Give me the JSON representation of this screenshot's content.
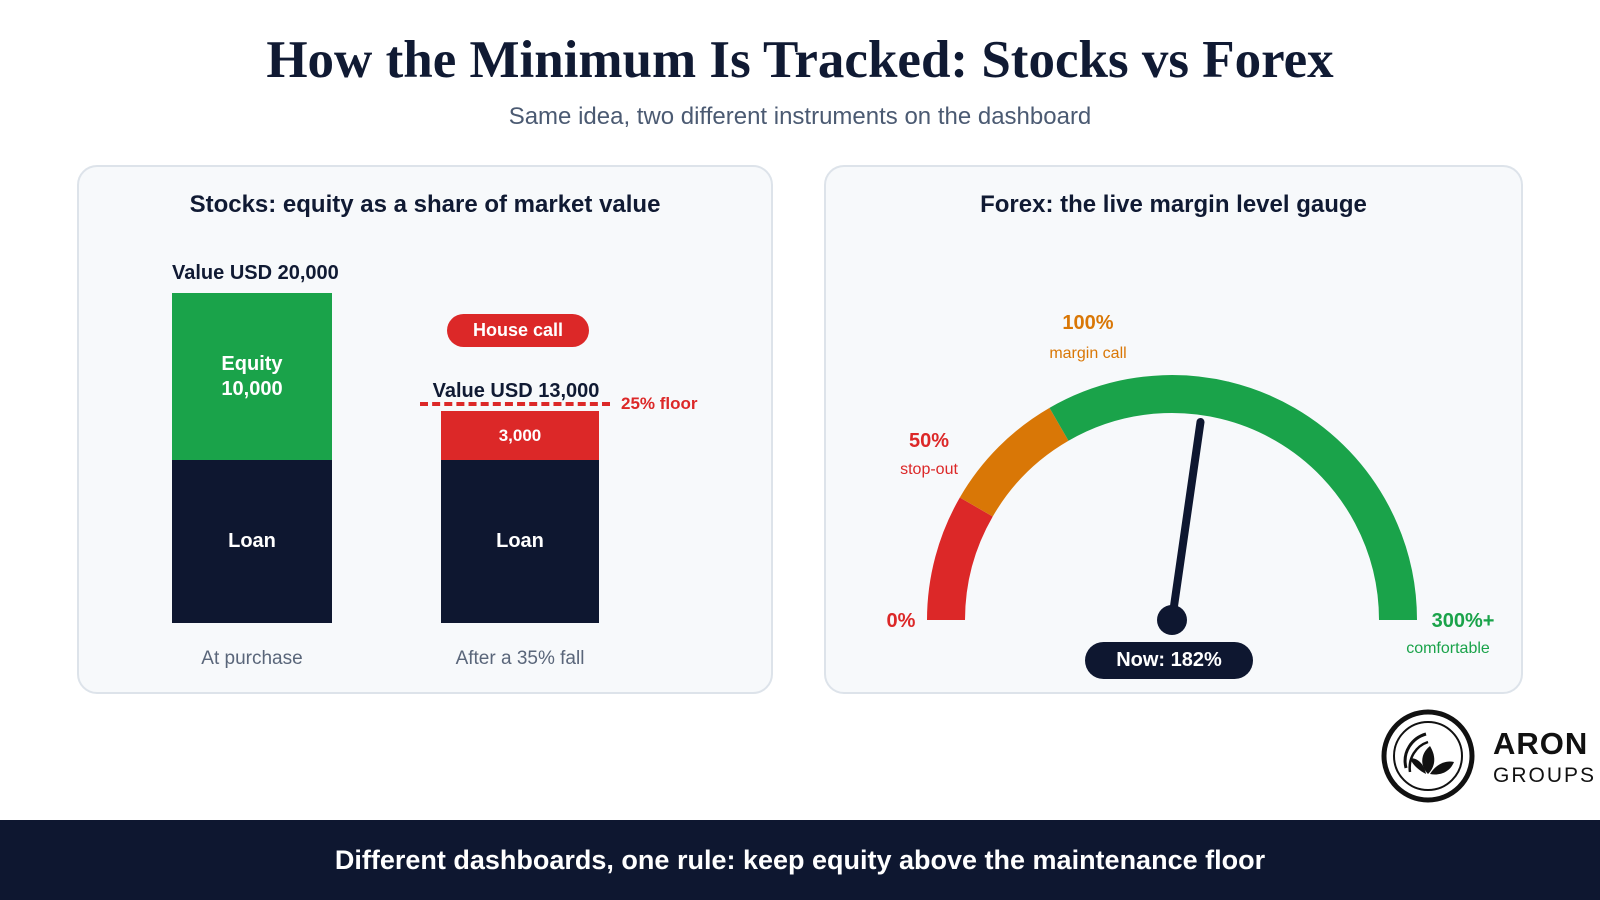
{
  "header": {
    "title": "How the Minimum Is Tracked: Stocks vs Forex",
    "subtitle": "Same idea, two different instruments on the dashboard"
  },
  "stocks_panel": {
    "title": "Stocks: equity as a share of market value",
    "before": {
      "value_label": "Value USD 20,000",
      "equity_label": "Equity",
      "equity_value": "10,000",
      "loan_label": "Loan",
      "caption": "At purchase"
    },
    "after": {
      "badge": "House call",
      "value_label": "Value USD 13,000",
      "equity_value": "3,000",
      "loan_label": "Loan",
      "caption": "After a 35% fall",
      "floor_label": "25% floor"
    }
  },
  "forex_panel": {
    "title": "Forex: the live margin level gauge",
    "gauge": {
      "min_label": "0%",
      "stopout_pct": "50%",
      "stopout_label": "stop-out",
      "margincall_pct": "100%",
      "margincall_label": "margin call",
      "max_pct": "300%+",
      "max_label": "comfortable",
      "now_label": "Now: 182%",
      "needle_value": 182,
      "scale_max": 300,
      "colors": {
        "danger": "#dc2828",
        "warning": "#d97706",
        "safe": "#1aa34a",
        "needle": "#0e1730"
      }
    }
  },
  "logo": {
    "name": "ARON",
    "sub": "GROUPS"
  },
  "footer": {
    "text": "Different dashboards, one rule: keep equity above the maintenance floor"
  }
}
